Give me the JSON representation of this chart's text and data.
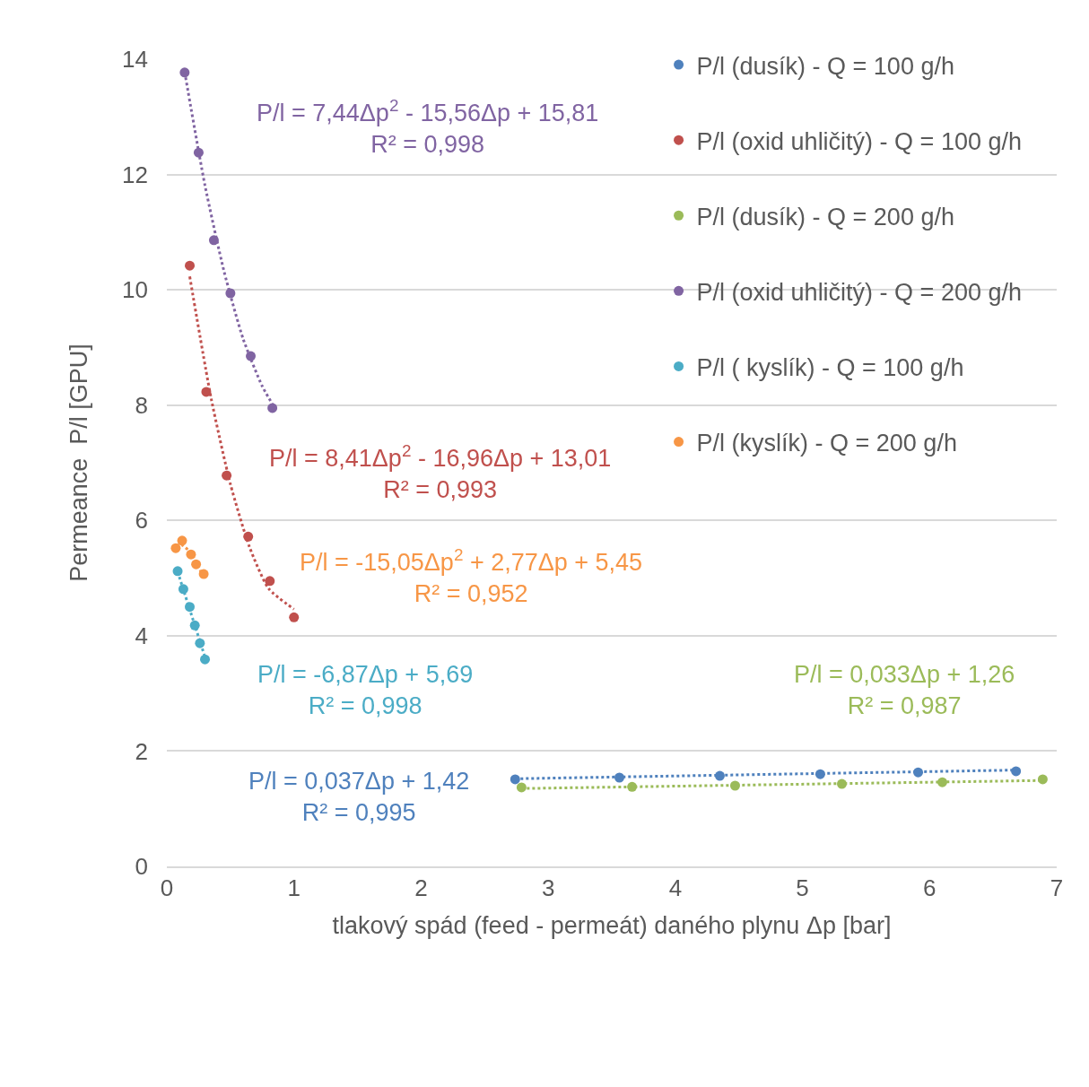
{
  "chart_data": {
    "type": "scatter",
    "xlabel": "tlakový spád (feed - permeát) daného plynu Δp [bar]",
    "ylabel": "Permeance  P/l [GPU]",
    "xlim": [
      0,
      7
    ],
    "xticks": [
      0,
      1,
      2,
      3,
      4,
      5,
      6,
      7
    ],
    "ylim": [
      0,
      14
    ],
    "yticks": [
      0,
      2,
      4,
      6,
      8,
      10,
      12,
      14
    ],
    "grid": "y",
    "legend": "top right",
    "marker": "circle",
    "series": [
      {
        "name": "P/l (dusík) - Q = 100 g/h",
        "color": "#4f81bd",
        "x": [
          2.74,
          3.56,
          4.35,
          5.14,
          5.91,
          6.68
        ],
        "values": [
          1.51,
          1.54,
          1.57,
          1.6,
          1.63,
          1.65
        ]
      },
      {
        "name": "P/l (oxid uhličitý) - Q = 100 g/h",
        "color": "#c0504d",
        "x": [
          0.18,
          0.31,
          0.47,
          0.64,
          0.81,
          1.0
        ],
        "values": [
          10.42,
          8.23,
          6.78,
          5.72,
          4.95,
          4.32
        ]
      },
      {
        "name": "P/l (dusík) - Q = 200 g/h",
        "color": "#9bbb59",
        "x": [
          2.79,
          3.66,
          4.47,
          5.31,
          6.1,
          6.89
        ],
        "values": [
          1.37,
          1.38,
          1.4,
          1.43,
          1.46,
          1.51
        ]
      },
      {
        "name": "P/l (oxid uhličitý) - Q = 200 g/h",
        "color": "#8064a2",
        "x": [
          0.14,
          0.25,
          0.37,
          0.5,
          0.66,
          0.83
        ],
        "values": [
          13.77,
          12.38,
          10.86,
          9.94,
          8.85,
          7.95
        ]
      },
      {
        "name": "P/l ( kyslík) - Q = 100 g/h",
        "color": "#4bacc6",
        "x": [
          0.085,
          0.13,
          0.18,
          0.22,
          0.26,
          0.3
        ],
        "values": [
          5.12,
          4.81,
          4.5,
          4.18,
          3.87,
          3.59
        ]
      },
      {
        "name": "P/l (kyslík) - Q = 200 g/h",
        "color": "#f79646",
        "x": [
          0.07,
          0.12,
          0.19,
          0.23,
          0.29
        ],
        "values": [
          5.52,
          5.65,
          5.41,
          5.24,
          5.07
        ]
      },
      {
        "type": "line",
        "marker": "none",
        "line_style": "dotted",
        "color": "#8064a2",
        "x": [
          0.14,
          0.3,
          0.45,
          0.6,
          0.75,
          0.83
        ],
        "values": [
          13.78,
          11.81,
          10.32,
          9.15,
          8.33,
          8.02
        ]
      },
      {
        "type": "line",
        "marker": "none",
        "line_style": "dotted",
        "color": "#c0504d",
        "x": [
          0.18,
          0.35,
          0.5,
          0.65,
          0.8,
          1.0
        ],
        "values": [
          10.23,
          8.1,
          6.63,
          5.54,
          4.82,
          4.46
        ]
      },
      {
        "type": "line",
        "marker": "none",
        "line_style": "dotted",
        "color": "#f79646",
        "x": [
          0.07,
          0.12,
          0.18,
          0.24,
          0.29
        ],
        "values": [
          5.57,
          5.57,
          5.46,
          5.25,
          4.99
        ]
      },
      {
        "type": "line",
        "marker": "none",
        "line_style": "dotted",
        "color": "#4bacc6",
        "x": [
          0.085,
          0.3
        ],
        "values": [
          5.11,
          3.63
        ]
      },
      {
        "type": "line",
        "marker": "none",
        "line_style": "dotted",
        "color": "#4f81bd",
        "x": [
          2.74,
          6.68
        ],
        "values": [
          1.52,
          1.67
        ]
      },
      {
        "type": "line",
        "marker": "none",
        "line_style": "dotted",
        "color": "#9bbb59",
        "x": [
          2.79,
          6.89
        ],
        "values": [
          1.35,
          1.49
        ]
      }
    ],
    "annotations": [
      "P/l = 7,44Δp$^{2}$ - 15,56Δp + 15,81\nR² = 0,998",
      "P/l = 8,41Δp$^{2}$ - 16,96Δp + 13,01\nR² = 0,993",
      "P/l = -15,05Δp$^{2}$ + 2,77Δp + 5,45\nR² = 0,952",
      "P/l = -6,87Δp + 5,69\nR² = 0,998",
      "P/l = 0,037Δp + 1,42\nR² = 0,995",
      "P/l = 0,033Δp + 1,26\nR² = 0,987"
    ]
  }
}
